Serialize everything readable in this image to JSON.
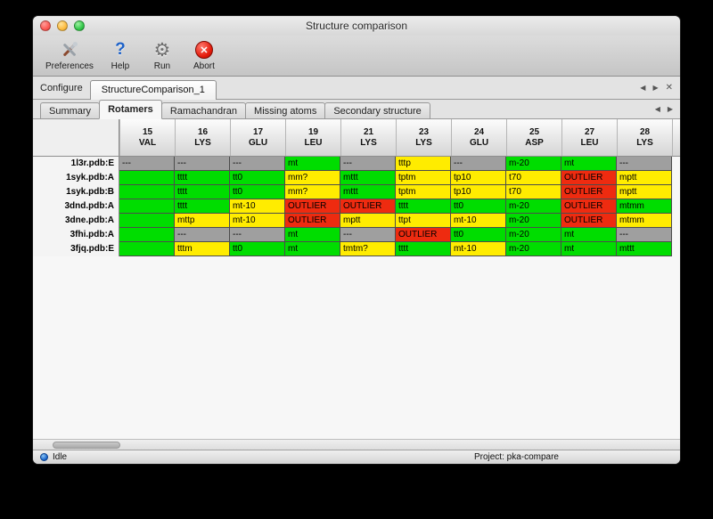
{
  "window": {
    "title": "Structure comparison"
  },
  "toolbar": {
    "buttons": [
      {
        "label": "Preferences",
        "icon": "tools-icon"
      },
      {
        "label": "Help",
        "icon": "help-icon",
        "glyph": "?"
      },
      {
        "label": "Run",
        "icon": "gear-icon",
        "glyph": "⚙"
      },
      {
        "label": "Abort",
        "icon": "abort-icon",
        "glyph": "✕"
      }
    ]
  },
  "configure": {
    "label": "Configure",
    "tab": "StructureComparison_1",
    "nav_left": "◀",
    "nav_right": "▶",
    "close": "✕"
  },
  "tabs": {
    "items": [
      {
        "label": "Summary",
        "selected": false
      },
      {
        "label": "Rotamers",
        "selected": true
      },
      {
        "label": "Ramachandran",
        "selected": false
      },
      {
        "label": "Missing atoms",
        "selected": false
      },
      {
        "label": "Secondary structure",
        "selected": false
      }
    ],
    "nav_left": "◀",
    "nav_right": "▶"
  },
  "colors": {
    "g": "#00dd00",
    "y": "#ffec00",
    "n": "#9f9f9f",
    "r": "#ee2b10"
  },
  "table": {
    "columns": [
      {
        "num": "15",
        "res": "VAL"
      },
      {
        "num": "16",
        "res": "LYS"
      },
      {
        "num": "17",
        "res": "GLU"
      },
      {
        "num": "19",
        "res": "LEU"
      },
      {
        "num": "21",
        "res": "LYS"
      },
      {
        "num": "23",
        "res": "LYS"
      },
      {
        "num": "24",
        "res": "GLU"
      },
      {
        "num": "25",
        "res": "ASP"
      },
      {
        "num": "27",
        "res": "LEU"
      },
      {
        "num": "28",
        "res": "LYS"
      }
    ],
    "rows": [
      {
        "name": "1l3r.pdb:E",
        "cells": [
          {
            "t": "---",
            "c": "n"
          },
          {
            "t": "---",
            "c": "n"
          },
          {
            "t": "---",
            "c": "n"
          },
          {
            "t": "mt",
            "c": "g"
          },
          {
            "t": "---",
            "c": "n"
          },
          {
            "t": "tttp",
            "c": "y"
          },
          {
            "t": "---",
            "c": "n"
          },
          {
            "t": "m-20",
            "c": "g"
          },
          {
            "t": "mt",
            "c": "g"
          },
          {
            "t": "---",
            "c": "n"
          }
        ]
      },
      {
        "name": "1syk.pdb:A",
        "cells": [
          {
            "t": "",
            "c": "g"
          },
          {
            "t": "tttt",
            "c": "g"
          },
          {
            "t": "tt0",
            "c": "g"
          },
          {
            "t": "mm?",
            "c": "y"
          },
          {
            "t": "mttt",
            "c": "g"
          },
          {
            "t": "tptm",
            "c": "y"
          },
          {
            "t": "tp10",
            "c": "y"
          },
          {
            "t": "t70",
            "c": "y"
          },
          {
            "t": "OUTLIER",
            "c": "r"
          },
          {
            "t": "mptt",
            "c": "y"
          }
        ]
      },
      {
        "name": "1syk.pdb:B",
        "cells": [
          {
            "t": "",
            "c": "g"
          },
          {
            "t": "tttt",
            "c": "g"
          },
          {
            "t": "tt0",
            "c": "g"
          },
          {
            "t": "mm?",
            "c": "y"
          },
          {
            "t": "mttt",
            "c": "g"
          },
          {
            "t": "tptm",
            "c": "y"
          },
          {
            "t": "tp10",
            "c": "y"
          },
          {
            "t": "t70",
            "c": "y"
          },
          {
            "t": "OUTLIER",
            "c": "r"
          },
          {
            "t": "mptt",
            "c": "y"
          }
        ]
      },
      {
        "name": "3dnd.pdb:A",
        "cells": [
          {
            "t": "",
            "c": "g"
          },
          {
            "t": "tttt",
            "c": "g"
          },
          {
            "t": "mt-10",
            "c": "y"
          },
          {
            "t": "OUTLIER",
            "c": "r"
          },
          {
            "t": "OUTLIER",
            "c": "r"
          },
          {
            "t": "tttt",
            "c": "g"
          },
          {
            "t": "tt0",
            "c": "g"
          },
          {
            "t": "m-20",
            "c": "g"
          },
          {
            "t": "OUTLIER",
            "c": "r"
          },
          {
            "t": "mtmm",
            "c": "g"
          }
        ]
      },
      {
        "name": "3dne.pdb:A",
        "cells": [
          {
            "t": "",
            "c": "g"
          },
          {
            "t": "mttp",
            "c": "y"
          },
          {
            "t": "mt-10",
            "c": "y"
          },
          {
            "t": "OUTLIER",
            "c": "r"
          },
          {
            "t": "mptt",
            "c": "y"
          },
          {
            "t": "ttpt",
            "c": "y"
          },
          {
            "t": "mt-10",
            "c": "y"
          },
          {
            "t": "m-20",
            "c": "g"
          },
          {
            "t": "OUTLIER",
            "c": "r"
          },
          {
            "t": "mtmm",
            "c": "y"
          }
        ]
      },
      {
        "name": "3fhi.pdb:A",
        "cells": [
          {
            "t": "",
            "c": "g"
          },
          {
            "t": "---",
            "c": "n"
          },
          {
            "t": "---",
            "c": "n"
          },
          {
            "t": "mt",
            "c": "g"
          },
          {
            "t": "---",
            "c": "n"
          },
          {
            "t": "OUTLIER",
            "c": "r"
          },
          {
            "t": "tt0",
            "c": "g"
          },
          {
            "t": "m-20",
            "c": "g"
          },
          {
            "t": "mt",
            "c": "g"
          },
          {
            "t": "---",
            "c": "n"
          }
        ]
      },
      {
        "name": "3fjq.pdb:E",
        "cells": [
          {
            "t": "",
            "c": "g"
          },
          {
            "t": "tttm",
            "c": "y"
          },
          {
            "t": "tt0",
            "c": "g"
          },
          {
            "t": "mt",
            "c": "g"
          },
          {
            "t": "tmtm?",
            "c": "y"
          },
          {
            "t": "tttt",
            "c": "g"
          },
          {
            "t": "mt-10",
            "c": "y"
          },
          {
            "t": "m-20",
            "c": "g"
          },
          {
            "t": "mt",
            "c": "g"
          },
          {
            "t": "mttt",
            "c": "g"
          }
        ]
      }
    ]
  },
  "statusbar": {
    "status": "Idle",
    "project": "Project: pka-compare"
  }
}
